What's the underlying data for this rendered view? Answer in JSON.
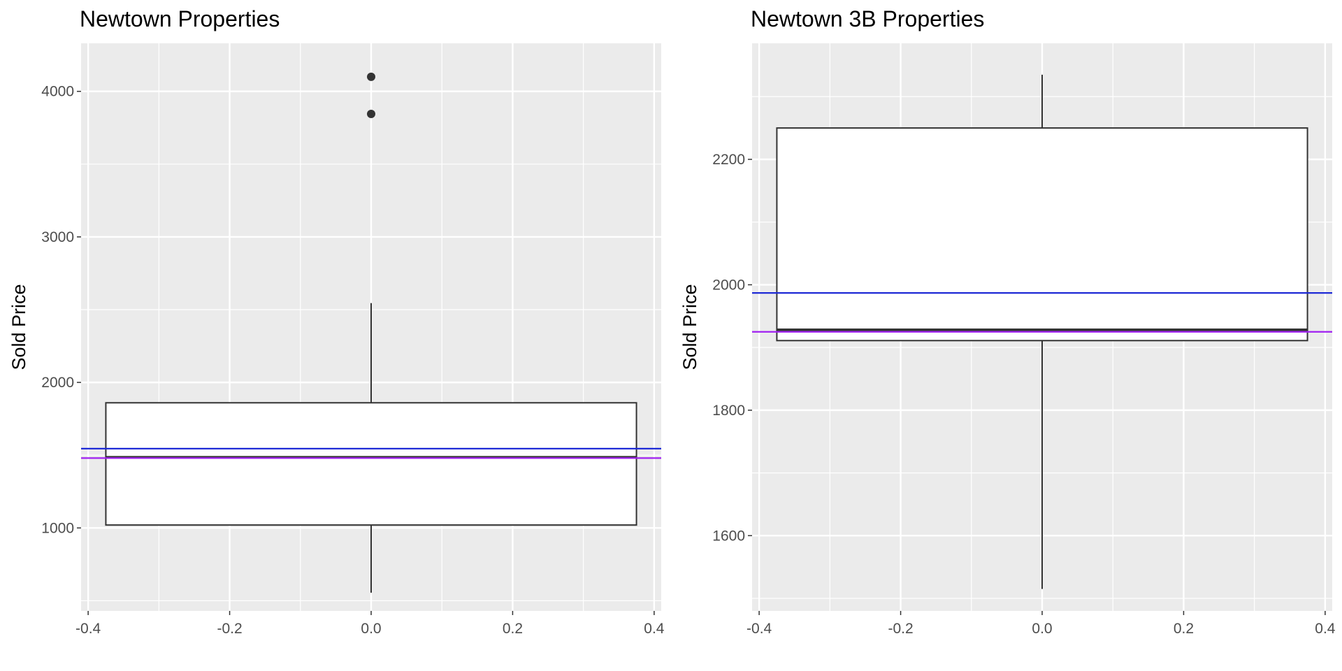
{
  "chart_data": [
    {
      "type": "boxplot",
      "title": "Newtown Properties",
      "ylabel": "Sold Price",
      "xlabel": "",
      "xlim": [
        -0.41,
        0.41
      ],
      "ylim": [
        430,
        4330
      ],
      "x_ticks": [
        -0.4,
        -0.2,
        0.0,
        0.2,
        0.4
      ],
      "x_tick_labels": [
        "-0.4",
        "-0.2",
        "0.0",
        "0.2",
        "0.4"
      ],
      "y_ticks": [
        1000,
        2000,
        3000,
        4000
      ],
      "y_tick_labels": [
        "1000",
        "2000",
        "3000",
        "4000"
      ],
      "grid": true,
      "box": {
        "x_center": 0.0,
        "x_left": -0.375,
        "x_right": 0.375,
        "whisker_low": 555,
        "q1": 1020,
        "median": 1485,
        "q3": 1860,
        "whisker_high": 2545
      },
      "outliers": [
        3845,
        4100
      ],
      "reference_lines": [
        {
          "value": 1545,
          "color": "#1f2bd6"
        },
        {
          "value": 1480,
          "color": "#a020f0"
        }
      ]
    },
    {
      "type": "boxplot",
      "title": "Newtown 3B Properties",
      "ylabel": "Sold Price",
      "xlabel": "",
      "xlim": [
        -0.41,
        0.41
      ],
      "ylim": [
        1480,
        2385
      ],
      "x_ticks": [
        -0.4,
        -0.2,
        0.0,
        0.2,
        0.4
      ],
      "x_tick_labels": [
        "-0.4",
        "-0.2",
        "0.0",
        "0.2",
        "0.4"
      ],
      "y_ticks": [
        1600,
        1800,
        2000,
        2200
      ],
      "y_tick_labels": [
        "1600",
        "1800",
        "2000",
        "2200"
      ],
      "grid": true,
      "box": {
        "x_center": 0.0,
        "x_left": -0.375,
        "x_right": 0.375,
        "whisker_low": 1515,
        "q1": 1911,
        "median": 1928,
        "q3": 2250,
        "whisker_high": 2335
      },
      "outliers": [],
      "reference_lines": [
        {
          "value": 1987,
          "color": "#1f2bd6"
        },
        {
          "value": 1925,
          "color": "#a020f0"
        }
      ]
    }
  ]
}
